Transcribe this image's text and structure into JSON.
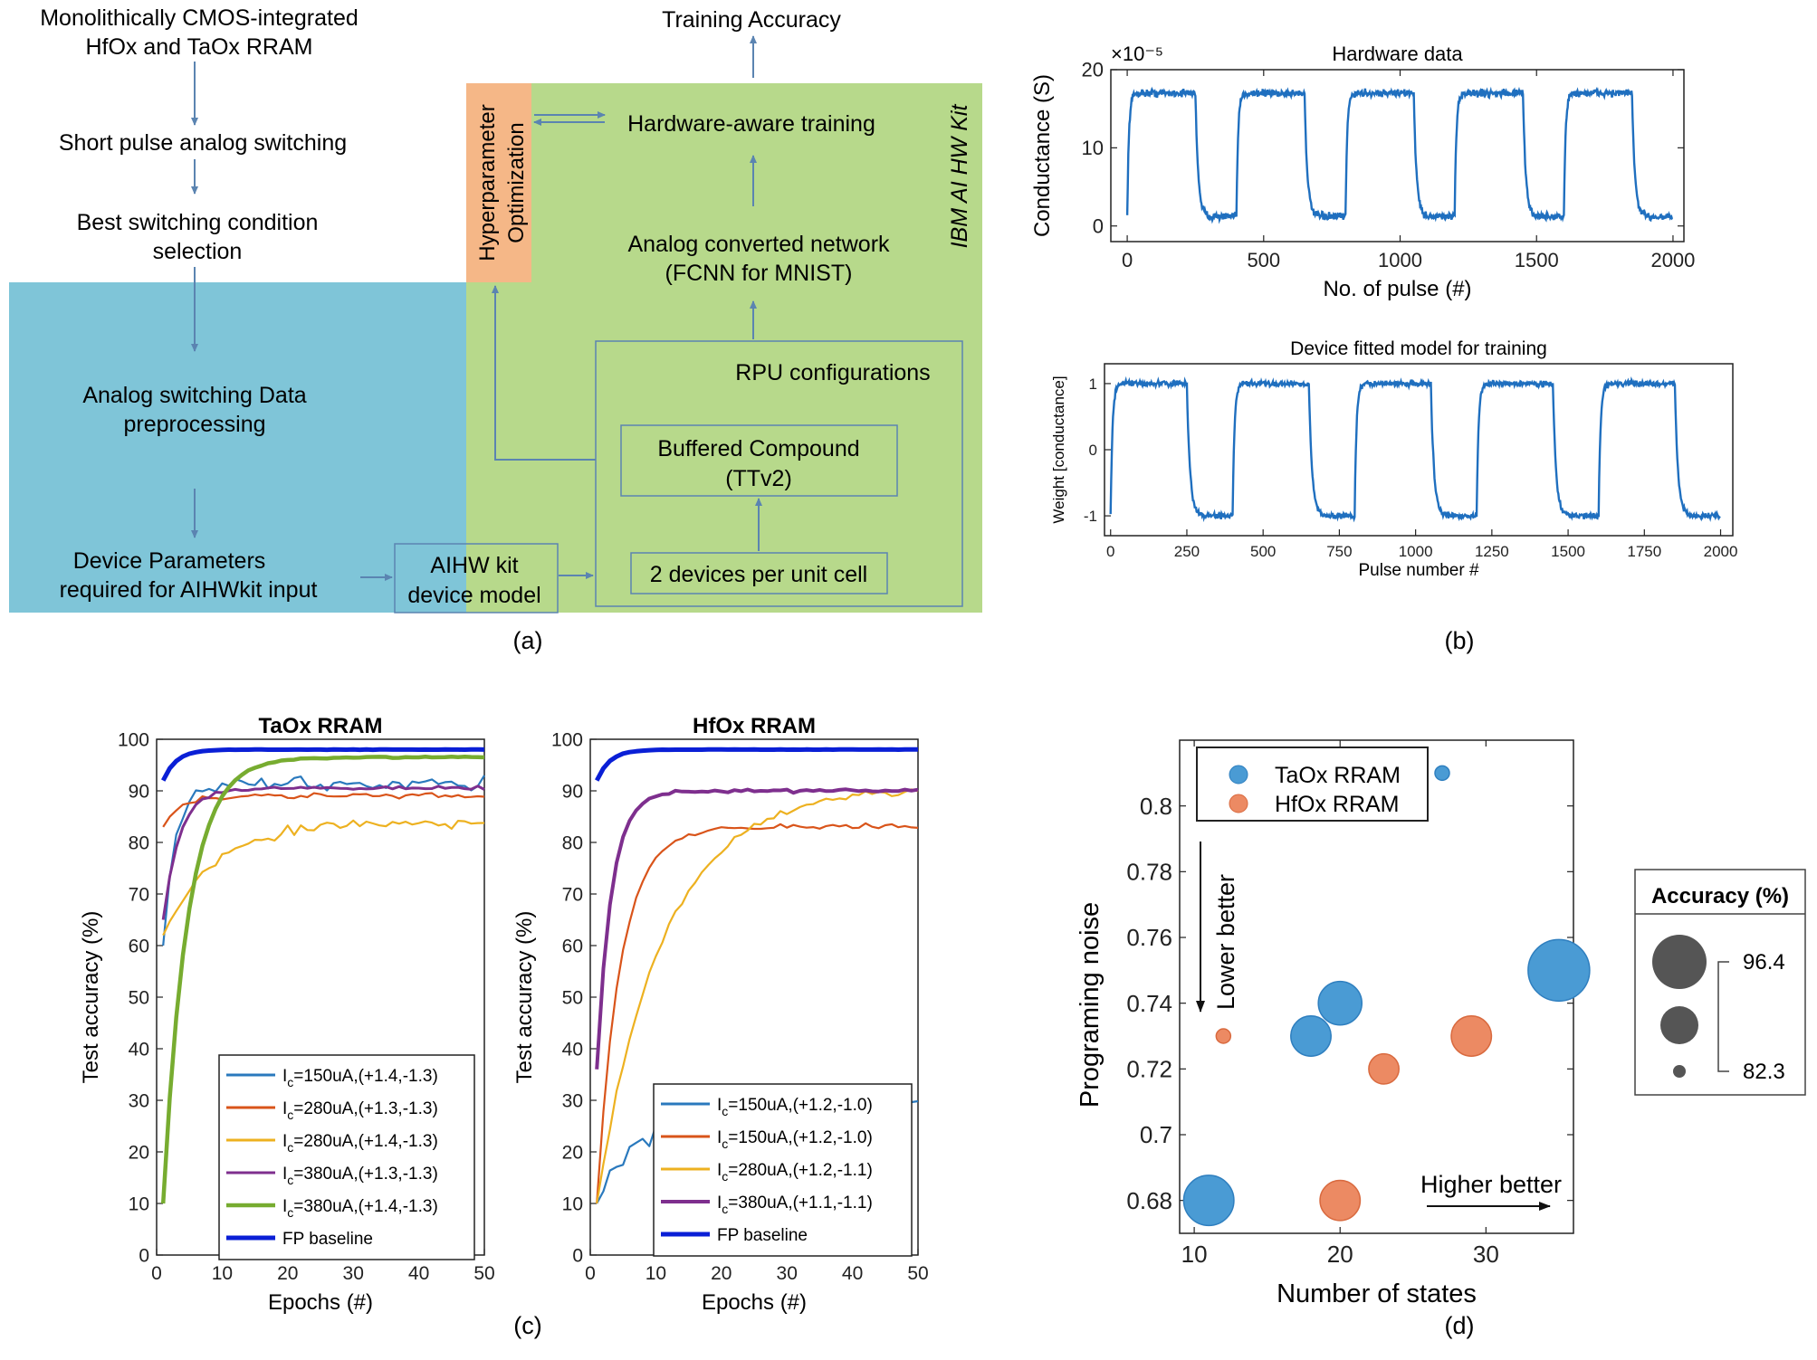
{
  "panel_a": {
    "caption": "(a)",
    "steps": [
      "Monolithically CMOS-integrated",
      "HfOx and TaOx RRAM",
      "Short pulse analog switching",
      "Best switching condition",
      "selection",
      "Analog switching Data",
      "preprocessing",
      "Device Parameters",
      "required for AIHWkit input"
    ],
    "training_accuracy": "Training Accuracy",
    "hyperparam": [
      "Hyperparameter",
      "Optimization"
    ],
    "hw_training": "Hardware-aware training",
    "ibm_kit": "IBM AI HW Kit",
    "analog_net": [
      "Analog converted network",
      "(FCNN for MNIST)"
    ],
    "rpu": "RPU configurations",
    "buffered": [
      "Buffered Compound",
      "(TTv2)"
    ],
    "two_devices": "2 devices per unit cell",
    "aihw_model": [
      "AIHW kit",
      "device model"
    ],
    "colors": {
      "blue_region": "#7fc5d8",
      "green_region": "#b7d98b",
      "orange_box": "#f5b787",
      "arrow": "#5b84b1"
    }
  },
  "chart_data": [
    {
      "id": "b1",
      "type": "line",
      "title": "Hardware data",
      "xlabel": "No. of pulse (#)",
      "ylabel": "Conductance (S)",
      "y_multiplier": "×10⁻⁵",
      "xlim": [
        -60,
        2040
      ],
      "ylim": [
        -2,
        20
      ],
      "xticks": [
        0,
        500,
        1000,
        1500,
        2000
      ],
      "yticks": [
        0,
        10,
        20
      ],
      "pattern": {
        "n_points": 2000,
        "period": 400,
        "high_duration": 250,
        "high_level": 17,
        "low_level": 1.2,
        "noise": 0.7
      },
      "color": "#1f6fbf"
    },
    {
      "id": "b2",
      "type": "line",
      "title": "Device fitted model for training",
      "xlabel": "Pulse number #",
      "ylabel": "Weight [conductance]",
      "xlim": [
        -20,
        2040
      ],
      "ylim": [
        -1.3,
        1.3
      ],
      "xticks": [
        0,
        250,
        500,
        750,
        1000,
        1250,
        1500,
        1750,
        2000
      ],
      "yticks": [
        -1,
        0,
        1
      ],
      "pattern": {
        "n_points": 2000,
        "period": 400,
        "high_duration": 250,
        "high_level": 1.0,
        "low_level": -1.0,
        "noise": 0.06
      },
      "color": "#1f6fbf"
    },
    {
      "id": "c1",
      "type": "line",
      "title": "TaOx RRAM",
      "xlabel": "Epochs (#)",
      "ylabel": "Test accuracy (%)",
      "xlim": [
        0,
        50
      ],
      "ylim": [
        0,
        100
      ],
      "xticks": [
        0,
        10,
        20,
        30,
        40,
        50
      ],
      "yticks": [
        0,
        10,
        20,
        30,
        40,
        50,
        60,
        70,
        80,
        90,
        100
      ],
      "series": [
        {
          "name": "Ic=150uA,(+1.4,-1.3)",
          "label_main": "I",
          "label_sub": "c",
          "label_rest": "=150uA,(+1.4,-1.3)",
          "color": "#2a79bd",
          "width": 2.2,
          "start": 60,
          "plateau": 91.5,
          "rate": 0.55,
          "noise": 1.8
        },
        {
          "name": "Ic=280uA,(+1.3,-1.3)",
          "label_main": "I",
          "label_sub": "c",
          "label_rest": "=280uA,(+1.3,-1.3)",
          "color": "#d9541a",
          "width": 2.2,
          "start": 83,
          "plateau": 89,
          "rate": 0.4,
          "noise": 1.0
        },
        {
          "name": "Ic=280uA,(+1.4,-1.3)",
          "label_main": "I",
          "label_sub": "c",
          "label_rest": "=280uA,(+1.4,-1.3)",
          "color": "#edb120",
          "width": 2.2,
          "start": 62,
          "plateau": 84,
          "rate": 0.13,
          "noise": 1.6
        },
        {
          "name": "Ic=380uA,(+1.3,-1.3)",
          "label_main": "I",
          "label_sub": "c",
          "label_rest": "=380uA,(+1.3,-1.3)",
          "color": "#7e2f8e",
          "width": 3,
          "start": 65,
          "plateau": 90.5,
          "rate": 0.4,
          "noise": 0.6
        },
        {
          "name": "Ic=380uA,(+1.4,-1.3)",
          "label_main": "I",
          "label_sub": "c",
          "label_rest": "=380uA,(+1.4,-1.3)",
          "color": "#77ac30",
          "width": 4.5,
          "start": 10,
          "plateau": 96.5,
          "rate": 0.27,
          "noise": 0.2
        },
        {
          "name": "FP baseline",
          "label_main": "FP baseline",
          "label_sub": "",
          "label_rest": "",
          "color": "#0a1fd6",
          "width": 5,
          "start": 92,
          "plateau": 98,
          "rate": 0.5,
          "noise": 0.05
        }
      ]
    },
    {
      "id": "c2",
      "type": "line",
      "title": "HfOx RRAM",
      "xlabel": "Epochs (#)",
      "ylabel": "Test accuracy (%)",
      "xlim": [
        0,
        50
      ],
      "ylim": [
        0,
        100
      ],
      "xticks": [
        0,
        10,
        20,
        30,
        40,
        50
      ],
      "yticks": [
        0,
        10,
        20,
        30,
        40,
        50,
        60,
        70,
        80,
        90,
        100
      ],
      "series": [
        {
          "name": "Ic=150uA,(+1.2,-1.0)",
          "label_main": "I",
          "label_sub": "c",
          "label_rest": "=150uA,(+1.2,-1.0)",
          "color": "#2a79bd",
          "width": 2.2,
          "start": 10,
          "plateau": 31,
          "rate": 0.12,
          "noise": 3
        },
        {
          "name": "Ic=150uA,(+1.2,-1.0)",
          "label_main": "I",
          "label_sub": "c",
          "label_rest": "=150uA,(+1.2,-1.0)",
          "color": "#d9541a",
          "width": 2.2,
          "start": 10,
          "plateau": 83,
          "rate": 0.28,
          "noise": 0.8
        },
        {
          "name": "Ic=280uA,(+1.2,-1.1)",
          "label_main": "I",
          "label_sub": "c",
          "label_rest": "=280uA,(+1.2,-1.1)",
          "color": "#edb120",
          "width": 2.2,
          "start": 10,
          "plateau": 90.5,
          "rate": 0.1,
          "noise": 1.0
        },
        {
          "name": "Ic=380uA,(+1.1,-1.1)",
          "label_main": "I",
          "label_sub": "c",
          "label_rest": "=380uA,(+1.1,-1.1)",
          "color": "#7e2f8e",
          "width": 4,
          "start": 36,
          "plateau": 90,
          "rate": 0.45,
          "noise": 0.5
        },
        {
          "name": "FP baseline",
          "label_main": "FP baseline",
          "label_sub": "",
          "label_rest": "",
          "color": "#0a1fd6",
          "width": 5,
          "start": 92,
          "plateau": 98,
          "rate": 0.5,
          "noise": 0.05
        }
      ]
    },
    {
      "id": "d",
      "type": "scatter",
      "xlabel": "Number of states",
      "ylabel": "Programing noise",
      "xlim": [
        9,
        36
      ],
      "ylim": [
        0.67,
        0.82
      ],
      "xticks": [
        10,
        20,
        30
      ],
      "yticks": [
        0.68,
        0.7,
        0.72,
        0.74,
        0.76,
        0.78,
        0.8
      ],
      "series": [
        {
          "name": "TaOx RRAM",
          "color": "#4a9bd4",
          "edge": "#2f7fbf",
          "points": [
            {
              "x": 27,
              "y": 0.81,
              "acc": 82.3
            },
            {
              "x": 35,
              "y": 0.75,
              "acc": 96.4
            },
            {
              "x": 20,
              "y": 0.74,
              "acc": 91
            },
            {
              "x": 18,
              "y": 0.73,
              "acc": 90
            },
            {
              "x": 11,
              "y": 0.68,
              "acc": 93
            }
          ]
        },
        {
          "name": "HfOx RRAM",
          "color": "#ec8a63",
          "edge": "#d96a3f",
          "points": [
            {
              "x": 12,
              "y": 0.73,
              "acc": 82.3
            },
            {
              "x": 29,
              "y": 0.73,
              "acc": 90
            },
            {
              "x": 23,
              "y": 0.72,
              "acc": 87
            },
            {
              "x": 20,
              "y": 0.68,
              "acc": 90
            }
          ]
        }
      ],
      "size_legend": {
        "title": "Accuracy (%)",
        "max": "96.4",
        "min": "82.3"
      },
      "annotations": {
        "lower": "Lower better",
        "higher": "Higher better"
      }
    }
  ],
  "captions": {
    "b": "(b)",
    "c": "(c)",
    "d": "(d)"
  }
}
